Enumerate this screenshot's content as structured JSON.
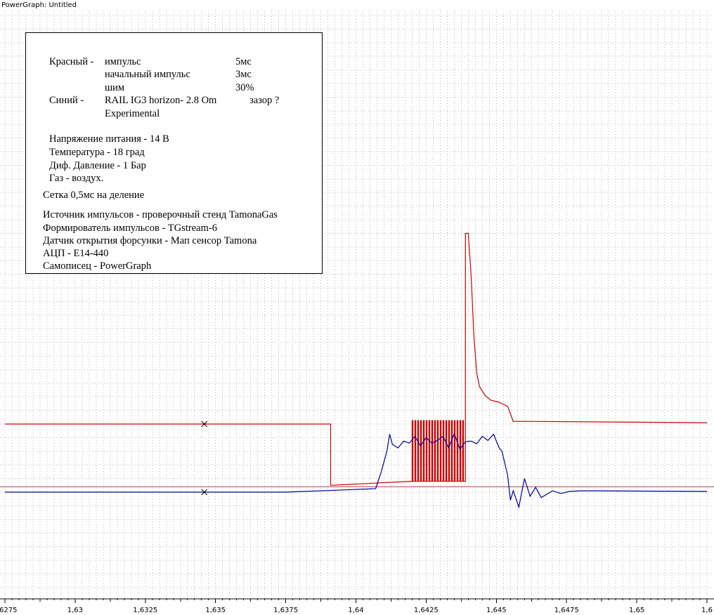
{
  "window": {
    "title": "PowerGraph: Untitled"
  },
  "notes": {
    "red_label": "Красный -",
    "red_items": [
      {
        "name": "импульс",
        "value": "5мс"
      },
      {
        "name": "начальный импульс",
        "value": "3мс"
      },
      {
        "name": "шим",
        "value": "30%"
      }
    ],
    "blue_label": "Синий -",
    "blue_desc": "RAIL IG3 horizon- 2.8 Om",
    "blue_gap": "зазор ?",
    "blue_desc2": "Experimental",
    "conditions": [
      "Напряжение питания - 14 В",
      "Температура - 18 град",
      "Диф. Давление - 1 Бар",
      "Газ - воздух."
    ],
    "grid_note": "Сетка 0,5мс на деление",
    "equipment": [
      "Источник импульсов - проверочный стенд TamonaGas",
      "Формирователь импульсов - TGstream-6",
      "Датчик открытия форсунки - Мап сенсор Tamona",
      "АЦП - E14-440",
      "Самописец - PowerGraph"
    ]
  },
  "chart_data": {
    "type": "line",
    "title": "",
    "xlabel": "",
    "ylabel": "",
    "x_ticks": [
      "1,6275",
      "1,63",
      "1,6325",
      "1,635",
      "1,6375",
      "1,64",
      "1,6425",
      "1,645",
      "1,6475",
      "1,65",
      "1,6"
    ],
    "xlim": [
      1.6275,
      1.6525
    ],
    "grid": true,
    "series": [
      {
        "color": "#cc0000",
        "x": [
          1.6275,
          1.6391,
          1.6391,
          1.642,
          1.642,
          1.6439,
          1.6439,
          1.644,
          1.6441,
          1.6442,
          1.6443,
          1.6444,
          1.6446,
          1.6448,
          1.6451,
          1.6454,
          1.6456,
          1.6525
        ],
        "y": [
          10,
          10,
          1,
          1.6,
          0.0,
          10.5,
          38,
          38,
          32,
          23,
          17.5,
          15.5,
          14.2,
          13.5,
          13.2,
          12.6,
          10.4,
          10.2
        ],
        "pwm": {
          "start": 1.642,
          "end": 1.6439,
          "period": 0.0001,
          "high": 10.5,
          "low": 1.6
        }
      },
      {
        "color": "#000099",
        "x": [
          1.6275,
          1.6375,
          1.6407,
          1.6409,
          1.6411,
          1.6412,
          1.6413,
          1.6415,
          1.6417,
          1.6419,
          1.6421,
          1.6423,
          1.6425,
          1.6427,
          1.6429,
          1.6431,
          1.6433,
          1.6435,
          1.6437,
          1.6439,
          1.6441,
          1.6443,
          1.6445,
          1.6447,
          1.6449,
          1.6451,
          1.6452,
          1.6454,
          1.6455,
          1.6456,
          1.6458,
          1.646,
          1.6462,
          1.6464,
          1.6466,
          1.6468,
          1.647,
          1.6473,
          1.6476,
          1.648,
          1.6485,
          1.6525
        ],
        "y": [
          0,
          0,
          0.5,
          3,
          6,
          8.5,
          7,
          6.5,
          7.5,
          7.2,
          8.2,
          6.8,
          8,
          7.2,
          7.6,
          8.2,
          6.5,
          8.6,
          6.3,
          7.4,
          7.5,
          7.1,
          8.2,
          7.6,
          8.5,
          6.5,
          6,
          2.5,
          -1.2,
          0.2,
          -2.2,
          2,
          -0.6,
          0.7,
          -0.8,
          -0.3,
          0.2,
          -0.2,
          0.1,
          0.2,
          0.2,
          0.1
        ]
      }
    ],
    "reference_line": {
      "y": 0.8,
      "color": "#990000"
    },
    "cursors": [
      {
        "x": 1.6346,
        "y_red": 10,
        "y_blue": 0
      }
    ]
  }
}
